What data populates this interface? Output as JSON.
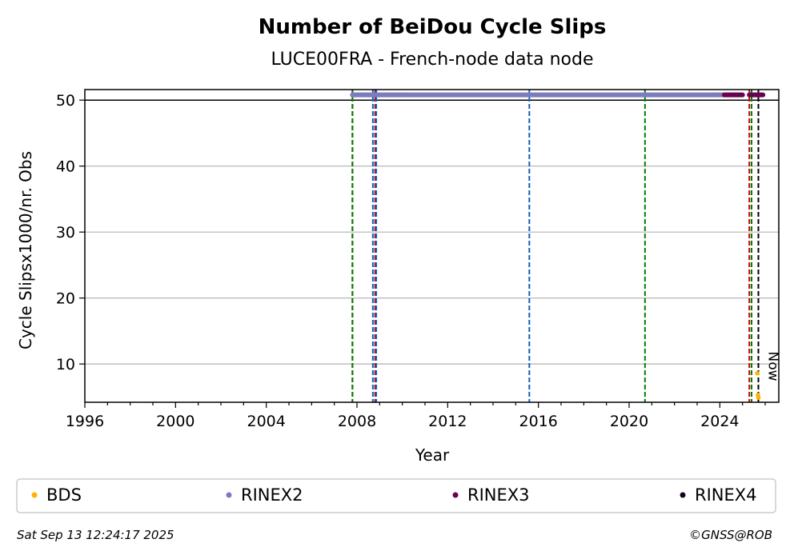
{
  "chart_data": {
    "type": "scatter",
    "title": "Number of BeiDou Cycle Slips",
    "subtitle": "LUCE00FRA - French-node data node",
    "xlabel": "Year",
    "ylabel": "Cycle Slipsx1000/nr. Obs",
    "xlim": [
      1996,
      2026.6
    ],
    "ylim": [
      4.2,
      51.6
    ],
    "x_ticks": [
      1996,
      2000,
      2004,
      2008,
      2012,
      2016,
      2020,
      2024
    ],
    "y_ticks": [
      10,
      20,
      30,
      40,
      50
    ],
    "grid": "horizontal",
    "reference_line_y": 50,
    "now_label": "Now",
    "now_x": 2025.7,
    "event_lines": [
      {
        "x": 2007.8,
        "color": "#cc0000"
      },
      {
        "x": 2007.8,
        "color": "#008000"
      },
      {
        "x": 2008.7,
        "color": "#1060c0"
      },
      {
        "x": 2008.8,
        "color": "#cc0000"
      },
      {
        "x": 2008.85,
        "color": "#1060c0"
      },
      {
        "x": 2015.6,
        "color": "#1060c0"
      },
      {
        "x": 2020.7,
        "color": "#008000"
      },
      {
        "x": 2025.3,
        "color": "#cc0000"
      },
      {
        "x": 2025.4,
        "color": "#008000"
      },
      {
        "x": 2025.7,
        "color": "#000000"
      }
    ],
    "series": [
      {
        "name": "BDS",
        "color": "#ffb000",
        "segments": [],
        "points": [
          [
            2025.65,
            8.6
          ],
          [
            2025.68,
            5.3
          ],
          [
            2025.7,
            4.9
          ]
        ]
      },
      {
        "name": "RINEX2",
        "color": "#7b7bbd",
        "segments": [
          [
            2007.8,
            2024.2,
            50.8
          ]
        ],
        "points": []
      },
      {
        "name": "RINEX3",
        "color": "#6a0050",
        "segments": [
          [
            2024.2,
            2025.0,
            50.8
          ],
          [
            2025.3,
            2025.9,
            50.8
          ]
        ],
        "points": []
      },
      {
        "name": "RINEX4",
        "color": "#1a0020",
        "segments": [],
        "points": []
      }
    ],
    "legend": {
      "placement": "below",
      "entries": [
        "BDS",
        "RINEX2",
        "RINEX3",
        "RINEX4"
      ]
    }
  },
  "footer": {
    "timestamp": "Sat Sep 13 12:24:17 2025",
    "credit": "©GNSS@ROB"
  }
}
